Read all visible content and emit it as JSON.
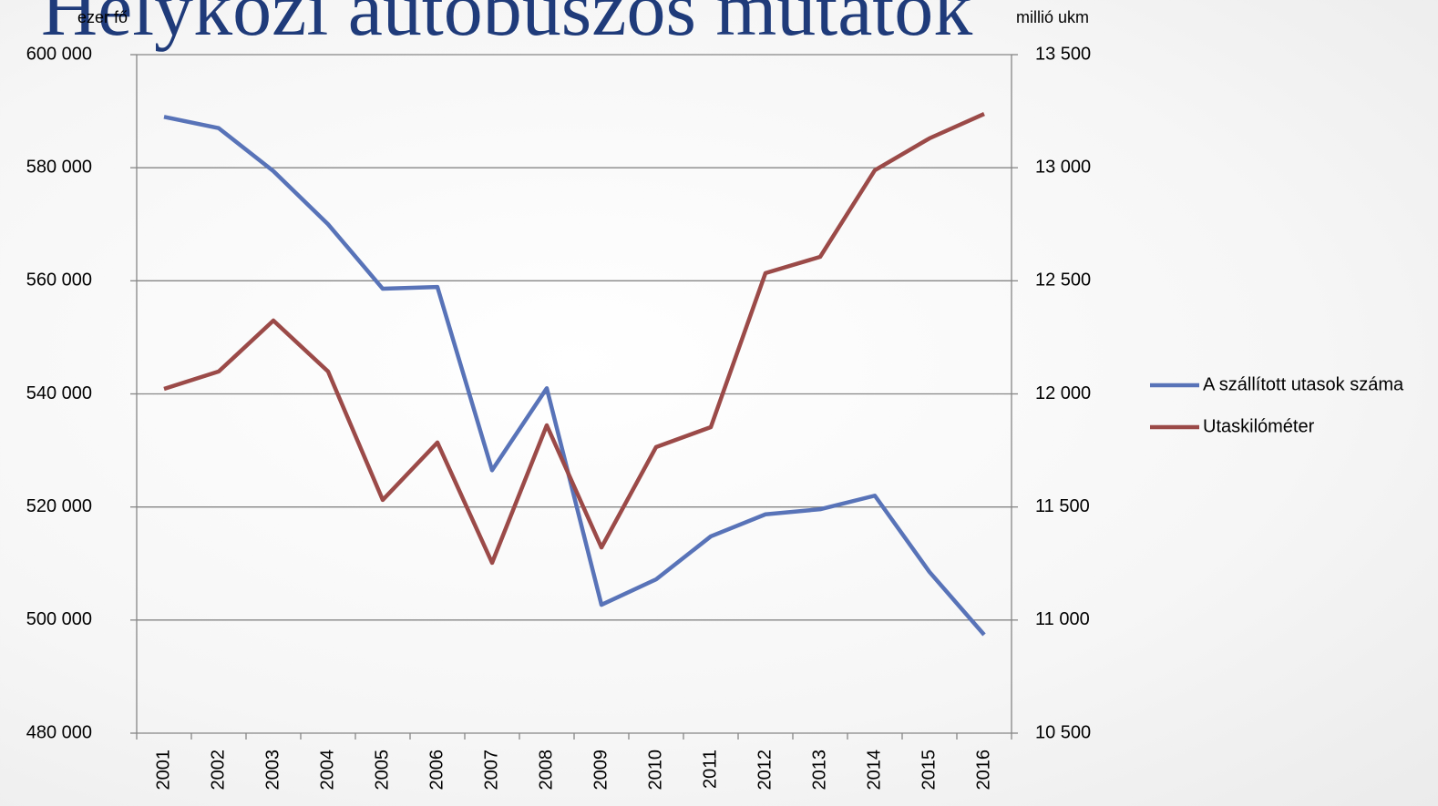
{
  "chart_data": {
    "type": "line",
    "title": "Helyközi autóbuszos mutatók",
    "y_label": "ezer fő",
    "y2_label": "millió ukm",
    "categories": [
      "2001",
      "2002",
      "2003",
      "2004",
      "2005",
      "2006",
      "2007",
      "2008",
      "2009",
      "2010",
      "2011",
      "2012",
      "2013",
      "2014",
      "2015",
      "2016"
    ],
    "series": [
      {
        "name": "A szállított utasok száma",
        "color": "#5873b8",
        "values": [
          589000,
          587000,
          579400,
          570000,
          558600,
          558900,
          526500,
          541000,
          502700,
          507200,
          514800,
          518700,
          519600,
          522000,
          508500,
          497400
        ]
      },
      {
        "name": "Utaskilóméter",
        "color": "#9b4a48",
        "axis": "y2",
        "values": [
          12022,
          12099,
          12324,
          12099,
          11531,
          11785,
          11253,
          11861,
          11321,
          11765,
          11853,
          12534,
          12606,
          12989,
          13130,
          13238
        ]
      }
    ],
    "ylim": [
      480000,
      600000
    ],
    "yticks": [
      {
        "value": 480000,
        "label": "480 000"
      },
      {
        "value": 500000,
        "label": "500 000"
      },
      {
        "value": 520000,
        "label": "520 000"
      },
      {
        "value": 540000,
        "label": "540 000"
      },
      {
        "value": 560000,
        "label": "560 000"
      },
      {
        "value": 580000,
        "label": "580 000"
      },
      {
        "value": 600000,
        "label": "600 000"
      }
    ],
    "y2lim": [
      10500,
      13500
    ],
    "y2ticks": [
      {
        "value": 10500,
        "label": "10 500"
      },
      {
        "value": 11000,
        "label": "11 000"
      },
      {
        "value": 11500,
        "label": "11 500"
      },
      {
        "value": 12000,
        "label": "12 000"
      },
      {
        "value": 12500,
        "label": "12 500"
      },
      {
        "value": 13000,
        "label": "13 000"
      },
      {
        "value": 13500,
        "label": "13 500"
      }
    ],
    "grid": true,
    "legend": "right"
  }
}
